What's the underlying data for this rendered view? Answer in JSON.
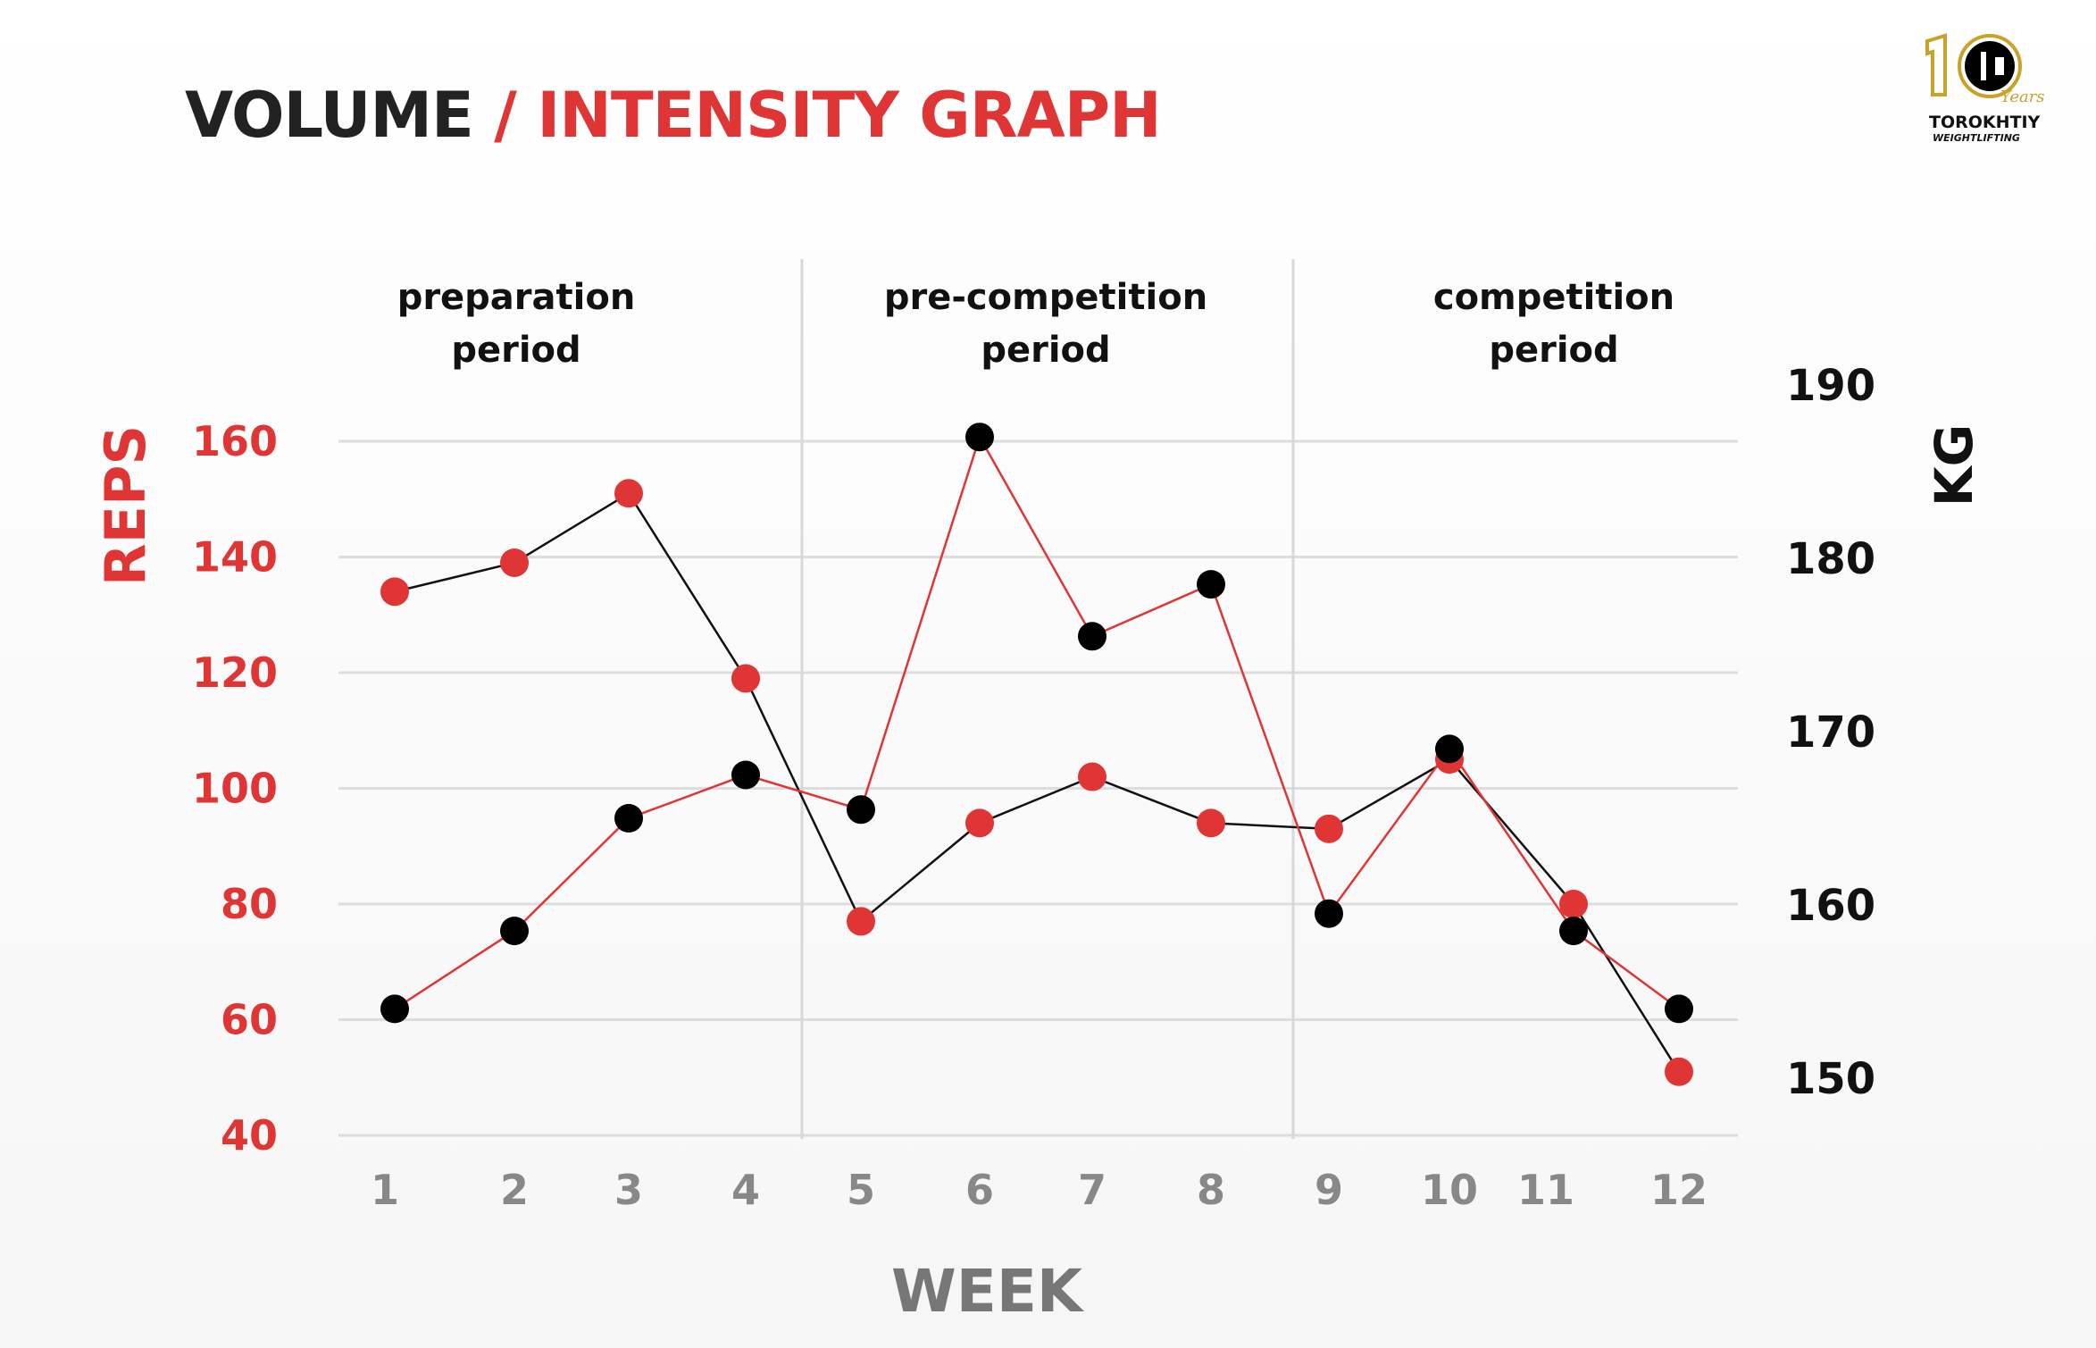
{
  "title": {
    "part1": "VOLUME",
    "sep": "/",
    "part2": "INTENSITY GRAPH"
  },
  "logo": {
    "text": "10 Years",
    "brand": "TOROKHTIY",
    "sub": "WEIGHTLIFTING"
  },
  "colors": {
    "red": "#e03535",
    "black": "#000000",
    "grid": "#dddddd",
    "tick_gray": "#888888"
  },
  "chart_data": {
    "type": "line",
    "xlabel": "WEEK",
    "ylabel": "REPS",
    "y2label": "KG",
    "x": [
      1,
      2,
      3,
      4,
      5,
      6,
      7,
      8,
      9,
      10,
      11,
      12
    ],
    "x_tick_labels": [
      "1",
      "2",
      "3",
      "4",
      "5",
      "6",
      "7",
      "8",
      "9",
      "10",
      "11",
      "12"
    ],
    "ylim": [
      40,
      160
    ],
    "y_ticks": [
      "160",
      "140",
      "120",
      "100",
      "80",
      "60",
      "40"
    ],
    "y2lim": [
      150,
      190
    ],
    "y2_ticks": [
      "190",
      "180",
      "170",
      "160",
      "150"
    ],
    "grid": "horizontal",
    "periods": [
      {
        "label1": "preparation",
        "label2": "period",
        "weeks": [
          1,
          4
        ]
      },
      {
        "label1": "pre-competition",
        "label2": "period",
        "weeks": [
          5,
          8
        ]
      },
      {
        "label1": "competition",
        "label2": "period",
        "weeks": [
          9,
          12
        ]
      }
    ],
    "series": [
      {
        "axis": "left",
        "marker_color": "#e03535",
        "line_color": "#111111",
        "values": [
          134,
          139,
          151,
          119,
          77,
          94,
          102,
          94,
          93,
          105,
          80,
          51
        ]
      },
      {
        "axis": "right",
        "marker_color": "#000000",
        "line_color": "#e03535",
        "values": [
          154,
          158.5,
          165,
          167.5,
          165.5,
          187,
          175.5,
          178.5,
          159.5,
          169,
          158.5,
          154
        ]
      }
    ]
  }
}
